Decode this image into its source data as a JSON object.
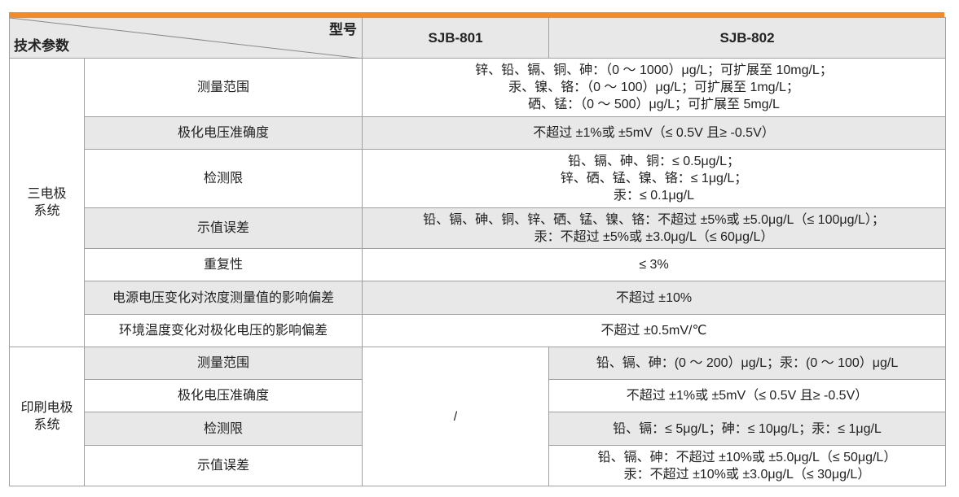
{
  "accent_color": "#f28c28",
  "header": {
    "model_label": "型号",
    "param_label": "技术参数",
    "models": [
      "SJB-801",
      "SJB-802"
    ]
  },
  "three_electrode": {
    "group_label": [
      "三电极",
      "系统"
    ],
    "rows": [
      {
        "param": "测量范围",
        "value": [
          "锌、铅、镉、铜、砷：（0 ～ 1000）μg/L；可扩展至 10mg/L；",
          "汞、镍、铬：（0 ～ 100）μg/L；可扩展至 1mg/L；",
          "硒、锰：（0 ～ 500）μg/L；可扩展至 5mg/L"
        ]
      },
      {
        "param": "极化电压准确度",
        "value": [
          "不超过 ±1%或 ±5mV（≤ 0.5V 且≥ -0.5V）"
        ]
      },
      {
        "param": "检测限",
        "value": [
          "铅、镉、砷、铜：≤ 0.5μg/L；",
          "锌、硒、锰、镍、铬：≤ 1μg/L；",
          "汞：≤ 0.1μg/L"
        ]
      },
      {
        "param": "示值误差",
        "value": [
          "铅、镉、砷、铜、锌、硒、锰、镍、铬：不超过 ±5%或 ±5.0μg/L（≤ 100μg/L）；",
          "汞：不超过 ±5%或 ±3.0μg/L（≤ 60μg/L）"
        ]
      },
      {
        "param": "重复性",
        "value": [
          "≤ 3%"
        ]
      },
      {
        "param": "电源电压变化对浓度测量值的影响偏差",
        "value": [
          "不超过 ±10%"
        ]
      },
      {
        "param": "环境温度变化对极化电压的影响偏差",
        "value": [
          "不超过 ±0.5mV/℃"
        ]
      }
    ]
  },
  "printed_electrode": {
    "group_label": [
      "印刷电极",
      "系统"
    ],
    "sjb801_value": "/",
    "rows": [
      {
        "param": "测量范围",
        "value": [
          "铅、镉、砷：(0 ～ 200）μg/L；汞：(0 ～ 100）μg/L"
        ]
      },
      {
        "param": "极化电压准确度",
        "value": [
          "不超过 ±1%或 ±5mV（≤ 0.5V 且≥ -0.5V）"
        ]
      },
      {
        "param": "检测限",
        "value": [
          "铅、镉：≤ 5μg/L；砷：≤ 10μg/L；汞：≤ 1μg/L"
        ]
      },
      {
        "param": "示值误差",
        "value": [
          "铅、镉、砷：不超过 ±10%或 ±5.0μg/L（≤ 50μg/L）",
          "汞：不超过 ±10%或 ±3.0μg/L（≤ 30μg/L）"
        ]
      }
    ]
  }
}
